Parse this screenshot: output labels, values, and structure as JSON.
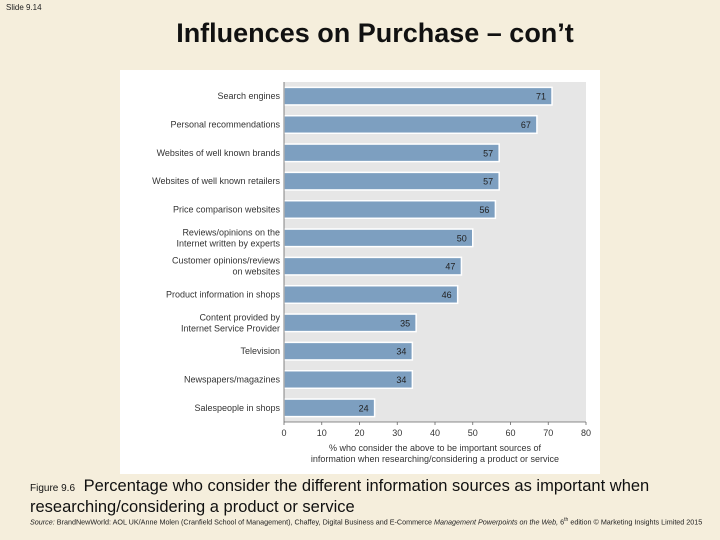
{
  "slide": {
    "number": "Slide 9.14"
  },
  "title": "Influences on Purchase – con’t",
  "caption": {
    "figure": "Figure 9.6",
    "text": "Percentage who consider the different information sources as important when researching/considering a product or service"
  },
  "source": {
    "label": "Source:",
    "text": "BrandNewWorld: AOL UK/Anne Molen (Cranfield School of Management), Chaffey, Digital Business and E-Commerce",
    "book": "Management Powerpoints on the Web,",
    "edition_pre": "6",
    "edition_sup": "th",
    "edition_post": "edition © Marketing Insights Limited 2015"
  },
  "chart_data": {
    "type": "bar",
    "orientation": "horizontal",
    "categories": [
      "Search engines",
      "Personal recommendations",
      "Websites of well known brands",
      "Websites of well known retailers",
      "Price comparison websites",
      "Reviews/opinions on the\nInternet written by experts",
      "Customer opinions/reviews\non websites",
      "Product information in shops",
      "Content provided by\nInternet Service Provider",
      "Television",
      "Newspapers/magazines",
      "Salespeople in shops"
    ],
    "values": [
      71,
      67,
      57,
      57,
      56,
      50,
      47,
      46,
      35,
      34,
      34,
      24
    ],
    "xlim": [
      0,
      80
    ],
    "xticks": [
      0,
      10,
      20,
      30,
      40,
      50,
      60,
      70,
      80
    ],
    "xlabel": "% who consider the above to be important sources of\ninformation when researching/considering a product or service",
    "bar_color": "#7d9fc0",
    "plot_bg": "#e6e6e6",
    "grid": false
  }
}
